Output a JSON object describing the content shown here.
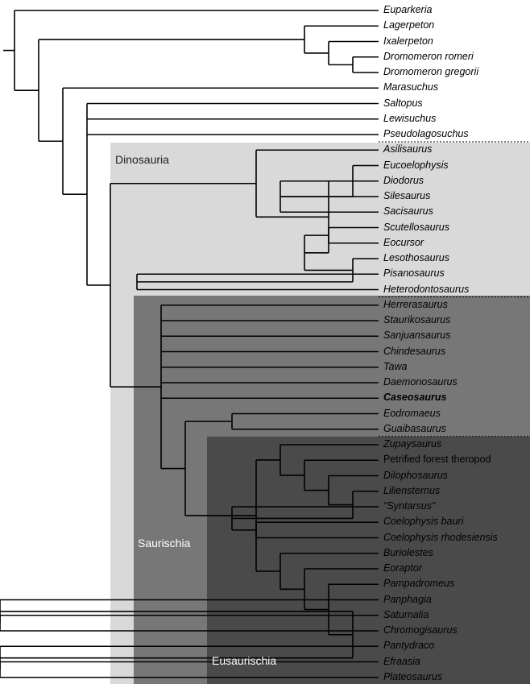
{
  "clades": {
    "dinosauria": "Dinosauria",
    "saurischia": "Saurischia",
    "eusaurischia": "Eusaurischia"
  },
  "colors": {
    "dinosauria_shade": "#d9d9d9",
    "saurischia_shade": "#777777",
    "eusaurischia_shade": "#4a4a4a",
    "branch": "#000000",
    "separator": "#000000"
  },
  "taxa": [
    {
      "name": "Euparkeria"
    },
    {
      "name": "Lagerpeton"
    },
    {
      "name": "Ixalerpeton"
    },
    {
      "name": "Dromomeron romeri"
    },
    {
      "name": "Dromomeron gregorii"
    },
    {
      "name": "Marasuchus"
    },
    {
      "name": "Saltopus"
    },
    {
      "name": "Lewisuchus"
    },
    {
      "name": "Pseudolagosuchus"
    },
    {
      "name": "Asilisaurus"
    },
    {
      "name": "Eucoelophysis"
    },
    {
      "name": "Diodorus"
    },
    {
      "name": "Silesaurus"
    },
    {
      "name": "Sacisaurus"
    },
    {
      "name": "Scutellosaurus"
    },
    {
      "name": "Eocursor"
    },
    {
      "name": "Lesothosaurus"
    },
    {
      "name": "Pisanosaurus"
    },
    {
      "name": "Heterodontosaurus"
    },
    {
      "name": "Herrerasaurus"
    },
    {
      "name": "Staurikosaurus"
    },
    {
      "name": "Sanjuansaurus"
    },
    {
      "name": "Chindesaurus"
    },
    {
      "name": "Tawa"
    },
    {
      "name": "Daemonosaurus"
    },
    {
      "name": "Caseosaurus",
      "bold": true
    },
    {
      "name": "Eodromaeus"
    },
    {
      "name": "Guaibasaurus"
    },
    {
      "name": "Zupaysaurus"
    },
    {
      "name": "Petrified forest theropod",
      "plain": true
    },
    {
      "name": "Dilophosaurus"
    },
    {
      "name": "Liliensternus"
    },
    {
      "name": "\"Syntarsus\""
    },
    {
      "name": "Coelophysis bauri"
    },
    {
      "name": "Coelophysis rhodesiensis"
    },
    {
      "name": "Buriolestes"
    },
    {
      "name": "Eoraptor"
    },
    {
      "name": "Pampadromeus"
    },
    {
      "name": "Panphagia"
    },
    {
      "name": "Saturnalia"
    },
    {
      "name": "Chromogisaurus"
    },
    {
      "name": "Pantydraco"
    },
    {
      "name": "Efraasia"
    },
    {
      "name": "Plateosaurus"
    }
  ],
  "tree": [
    [
      "Euparkeria"
    ],
    [
      [
        [
          "Lagerpeton"
        ],
        [
          [
            "Ixalerpeton"
          ],
          [
            [
              "Dromomeron romeri"
            ],
            [
              "Dromomeron gregorii"
            ]
          ]
        ]
      ],
      [
        [
          "Marasuchus"
        ],
        [
          [
            "Saltopus"
          ],
          [
            "Lewisuchus"
          ],
          [
            "Pseudolagosuchus"
          ],
          [
            [
              [
                "Asilisaurus"
              ],
              [
                [
                  [
                    "Eucoelophysis"
                  ],
                  [
                    [
                      "Diodorus"
                    ],
                    [
                      "Silesaurus"
                    ],
                    [
                      "Sacisaurus"
                    ]
                  ]
                ],
                [
                  [
                    [
                      "Scutellosaurus"
                    ],
                    [
                      "Eocursor"
                    ]
                  ],
                  [
                    [
                      "Lesothosaurus"
                    ],
                    [
                      [
                        "Pisanosaurus"
                      ],
                      [
                        "Heterodontosaurus"
                      ]
                    ]
                  ]
                ]
              ]
            ],
            [
              [
                "Herrerasaurus"
              ],
              [
                "Staurikosaurus"
              ],
              [
                "Sanjuansaurus"
              ],
              [
                "Chindesaurus"
              ],
              [
                "Tawa"
              ],
              [
                "Daemonosaurus"
              ],
              [
                "Caseosaurus"
              ],
              [
                [
                  [
                    "Eodromaeus"
                  ],
                  [
                    "Guaibasaurus"
                  ]
                ],
                [
                  [
                    [
                      "Zupaysaurus"
                    ],
                    [
                      [
                        "Petrified forest theropod"
                      ],
                      [
                        [
                          "Dilophosaurus"
                        ],
                        [
                          [
                            "Liliensternus"
                          ],
                          [
                            [
                              "\"Syntarsus\""
                            ],
                            [
                              [
                                "Coelophysis bauri"
                              ],
                              [
                                "Coelophysis rhodesiensis"
                              ]
                            ]
                          ]
                        ]
                      ]
                    ]
                  ],
                  [
                    [
                      "Buriolestes"
                    ],
                    [
                      [
                        "Eoraptor"
                      ],
                      [
                        [
                          "Pampadromeus"
                        ],
                        [
                          [
                            [
                              "Panphagia"
                            ],
                            [
                              [
                                "Saturnalia"
                              ],
                              [
                                "Chromogisaurus"
                              ]
                            ]
                          ],
                          [
                            [
                              "Pantydraco"
                            ],
                            [
                              [
                                "Efraasia"
                              ],
                              [
                                "Plateosaurus"
                              ]
                            ]
                          ]
                        ]
                      ]
                    ]
                  ]
                ]
              ]
            ]
          ]
        ]
      ]
    ]
  ]
}
